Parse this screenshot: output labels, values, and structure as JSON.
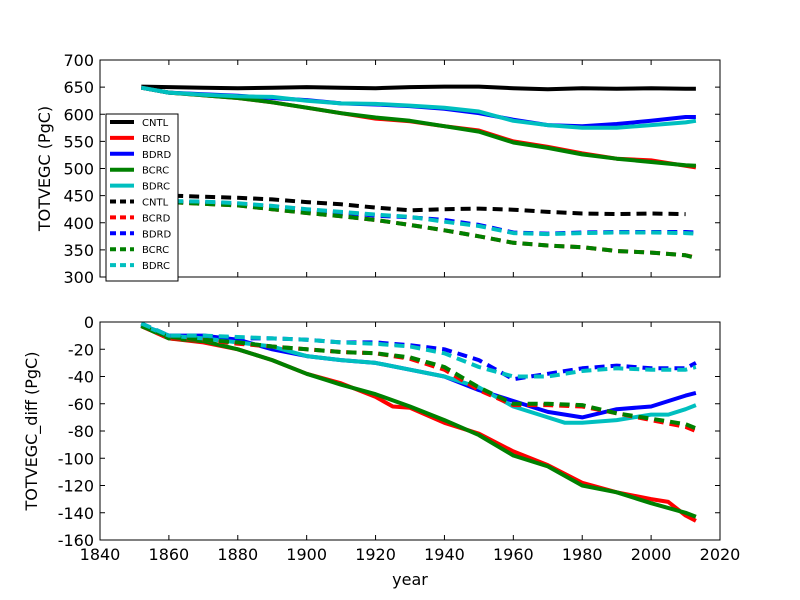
{
  "chart_data": [
    {
      "type": "line",
      "ylabel": "TOTVEGC (PgC)",
      "xlabel": "",
      "xlim": [
        1840,
        2020
      ],
      "ylim": [
        300,
        700
      ],
      "xticks": [
        1840,
        1860,
        1880,
        1900,
        1920,
        1940,
        1960,
        1980,
        2000,
        2020
      ],
      "yticks": [
        300,
        350,
        400,
        450,
        500,
        550,
        600,
        650,
        700
      ],
      "show_xtick_labels": false,
      "legend_position": "left",
      "series": [
        {
          "name": "CNTL",
          "color": "#000000",
          "style": "solid",
          "x": [
            1852,
            1860,
            1870,
            1880,
            1890,
            1900,
            1910,
            1920,
            1930,
            1940,
            1950,
            1960,
            1970,
            1980,
            1990,
            2000,
            2010,
            2013
          ],
          "y": [
            651,
            650,
            649,
            648,
            649,
            650,
            649,
            648,
            650,
            651,
            651,
            648,
            646,
            648,
            647,
            648,
            647,
            647
          ]
        },
        {
          "name": "BCRD",
          "color": "#ff0000",
          "style": "solid",
          "x": [
            1852,
            1860,
            1870,
            1880,
            1890,
            1900,
            1910,
            1920,
            1930,
            1940,
            1950,
            1960,
            1970,
            1980,
            1990,
            2000,
            2010,
            2013
          ],
          "y": [
            649,
            640,
            635,
            630,
            622,
            612,
            602,
            592,
            587,
            578,
            570,
            550,
            540,
            528,
            518,
            515,
            505,
            502
          ]
        },
        {
          "name": "BDRD",
          "color": "#0000ff",
          "style": "solid",
          "x": [
            1852,
            1860,
            1870,
            1880,
            1890,
            1900,
            1910,
            1920,
            1930,
            1940,
            1950,
            1960,
            1970,
            1980,
            1990,
            2000,
            2010,
            2013
          ],
          "y": [
            649,
            640,
            637,
            634,
            630,
            626,
            620,
            618,
            615,
            610,
            602,
            590,
            580,
            578,
            582,
            588,
            595,
            595
          ]
        },
        {
          "name": "BCRC",
          "color": "#008000",
          "style": "solid",
          "x": [
            1852,
            1860,
            1870,
            1880,
            1890,
            1900,
            1910,
            1920,
            1930,
            1940,
            1950,
            1960,
            1970,
            1980,
            1990,
            2000,
            2010,
            2013
          ],
          "y": [
            649,
            640,
            635,
            630,
            622,
            612,
            602,
            594,
            588,
            578,
            568,
            548,
            538,
            526,
            518,
            512,
            506,
            505
          ]
        },
        {
          "name": "BDRC",
          "color": "#00bfbf",
          "style": "solid",
          "x": [
            1852,
            1860,
            1870,
            1880,
            1890,
            1900,
            1910,
            1920,
            1930,
            1940,
            1950,
            1960,
            1970,
            1980,
            1990,
            2000,
            2010,
            2013
          ],
          "y": [
            649,
            640,
            636,
            633,
            632,
            625,
            620,
            619,
            616,
            612,
            605,
            588,
            580,
            575,
            575,
            580,
            585,
            588
          ]
        },
        {
          "name": "CNTL",
          "color": "#000000",
          "style": "dashed",
          "x": [
            1852,
            1860,
            1870,
            1880,
            1890,
            1900,
            1910,
            1920,
            1930,
            1940,
            1950,
            1960,
            1970,
            1980,
            1990,
            2000,
            2010
          ],
          "y": [
            455,
            450,
            448,
            446,
            443,
            438,
            434,
            428,
            423,
            425,
            426,
            424,
            420,
            417,
            416,
            417,
            416
          ]
        },
        {
          "name": "BCRD",
          "color": "#ff0000",
          "style": "dashed",
          "x": [
            1852,
            1860,
            1870,
            1880,
            1890,
            1900,
            1910,
            1920,
            1930,
            1940,
            1950,
            1960,
            1970,
            1980,
            1990,
            2000,
            2010,
            2013
          ],
          "y": [
            442,
            438,
            435,
            432,
            425,
            418,
            412,
            405,
            396,
            386,
            375,
            363,
            358,
            355,
            348,
            345,
            340,
            336
          ]
        },
        {
          "name": "BDRD",
          "color": "#0000ff",
          "style": "dashed",
          "x": [
            1852,
            1860,
            1870,
            1880,
            1890,
            1900,
            1910,
            1920,
            1930,
            1940,
            1950,
            1960,
            1970,
            1980,
            1990,
            2000,
            2010,
            2013
          ],
          "y": [
            442,
            438,
            438,
            435,
            430,
            424,
            419,
            413,
            410,
            405,
            396,
            382,
            380,
            382,
            383,
            383,
            383,
            382
          ]
        },
        {
          "name": "BCRC",
          "color": "#008000",
          "style": "dashed",
          "x": [
            1852,
            1860,
            1870,
            1880,
            1890,
            1900,
            1910,
            1920,
            1930,
            1940,
            1950,
            1960,
            1970,
            1980,
            1990,
            2000,
            2010,
            2013
          ],
          "y": [
            442,
            438,
            435,
            432,
            425,
            418,
            412,
            405,
            396,
            386,
            375,
            363,
            358,
            355,
            348,
            345,
            340,
            335
          ]
        },
        {
          "name": "BDRC",
          "color": "#00bfbf",
          "style": "dashed",
          "x": [
            1852,
            1860,
            1870,
            1880,
            1890,
            1900,
            1910,
            1920,
            1930,
            1940,
            1950,
            1960,
            1970,
            1980,
            1990,
            2000,
            2010,
            2013
          ],
          "y": [
            442,
            440,
            439,
            436,
            431,
            425,
            420,
            415,
            411,
            402,
            394,
            381,
            379,
            381,
            382,
            382,
            381,
            380
          ]
        }
      ]
    },
    {
      "type": "line",
      "ylabel": "TOTVEGC_diff (PgC)",
      "xlabel": "year",
      "xlim": [
        1840,
        2020
      ],
      "ylim": [
        -160,
        0
      ],
      "xticks": [
        1840,
        1860,
        1880,
        1900,
        1920,
        1940,
        1960,
        1980,
        2000,
        2020
      ],
      "yticks": [
        -160,
        -140,
        -120,
        -100,
        -80,
        -60,
        -40,
        -20,
        0
      ],
      "show_xtick_labels": true,
      "series": [
        {
          "name": "BCRD",
          "color": "#ff0000",
          "style": "solid",
          "x": [
            1852,
            1860,
            1870,
            1880,
            1890,
            1900,
            1910,
            1920,
            1925,
            1930,
            1940,
            1950,
            1960,
            1970,
            1980,
            1990,
            2000,
            2005,
            2010,
            2013
          ],
          "y": [
            -3,
            -12,
            -15,
            -20,
            -28,
            -38,
            -45,
            -55,
            -62,
            -63,
            -74,
            -82,
            -95,
            -105,
            -118,
            -125,
            -130,
            -132,
            -142,
            -146
          ]
        },
        {
          "name": "BDRD",
          "color": "#0000ff",
          "style": "solid",
          "x": [
            1852,
            1860,
            1870,
            1880,
            1890,
            1900,
            1910,
            1920,
            1930,
            1940,
            1950,
            1960,
            1970,
            1975,
            1980,
            1990,
            2000,
            2010,
            2013
          ],
          "y": [
            -2,
            -10,
            -10,
            -13,
            -20,
            -25,
            -28,
            -30,
            -35,
            -40,
            -50,
            -58,
            -66,
            -68,
            -70,
            -64,
            -62,
            -54,
            -52
          ]
        },
        {
          "name": "BCRC",
          "color": "#008000",
          "style": "solid",
          "x": [
            1852,
            1860,
            1870,
            1880,
            1890,
            1900,
            1910,
            1920,
            1930,
            1940,
            1950,
            1960,
            1970,
            1980,
            1990,
            2000,
            2010,
            2013
          ],
          "y": [
            -3,
            -12,
            -14,
            -20,
            -28,
            -38,
            -46,
            -53,
            -62,
            -72,
            -83,
            -98,
            -106,
            -120,
            -125,
            -133,
            -140,
            -143
          ]
        },
        {
          "name": "BDRC",
          "color": "#00bfbf",
          "style": "solid",
          "x": [
            1852,
            1860,
            1870,
            1880,
            1890,
            1900,
            1910,
            1920,
            1930,
            1940,
            1950,
            1960,
            1970,
            1975,
            1980,
            1990,
            2000,
            2005,
            2010,
            2013
          ],
          "y": [
            -2,
            -10,
            -12,
            -15,
            -18,
            -25,
            -28,
            -30,
            -35,
            -40,
            -48,
            -62,
            -70,
            -74,
            -74,
            -72,
            -68,
            -68,
            -64,
            -61
          ]
        },
        {
          "name": "BCRD",
          "color": "#ff0000",
          "style": "dashed",
          "x": [
            1852,
            1860,
            1870,
            1880,
            1890,
            1900,
            1910,
            1920,
            1930,
            1940,
            1950,
            1960,
            1970,
            1980,
            1990,
            2000,
            2010,
            2013
          ],
          "y": [
            -3,
            -12,
            -13,
            -16,
            -18,
            -20,
            -22,
            -23,
            -27,
            -35,
            -50,
            -61,
            -61,
            -62,
            -67,
            -72,
            -77,
            -80
          ]
        },
        {
          "name": "BDRD",
          "color": "#0000ff",
          "style": "dashed",
          "x": [
            1852,
            1860,
            1870,
            1880,
            1890,
            1900,
            1910,
            1920,
            1930,
            1940,
            1950,
            1960,
            1970,
            1980,
            1990,
            2000,
            2010,
            2013
          ],
          "y": [
            -1,
            -10,
            -10,
            -12,
            -12,
            -13,
            -15,
            -15,
            -17,
            -20,
            -28,
            -42,
            -38,
            -34,
            -32,
            -34,
            -34,
            -30
          ]
        },
        {
          "name": "BCRC",
          "color": "#008000",
          "style": "dashed",
          "x": [
            1852,
            1860,
            1870,
            1880,
            1890,
            1900,
            1910,
            1920,
            1930,
            1940,
            1950,
            1960,
            1970,
            1980,
            1990,
            2000,
            2010,
            2013
          ],
          "y": [
            -3,
            -11,
            -13,
            -15,
            -18,
            -20,
            -22,
            -23,
            -26,
            -33,
            -48,
            -60,
            -60,
            -61,
            -67,
            -71,
            -75,
            -78
          ]
        },
        {
          "name": "BDRC",
          "color": "#00bfbf",
          "style": "dashed",
          "x": [
            1852,
            1860,
            1870,
            1880,
            1890,
            1900,
            1910,
            1920,
            1930,
            1940,
            1950,
            1960,
            1970,
            1980,
            1990,
            2000,
            2010,
            2013
          ],
          "y": [
            -1,
            -10,
            -10,
            -11,
            -12,
            -13,
            -15,
            -16,
            -18,
            -23,
            -33,
            -40,
            -40,
            -36,
            -34,
            -35,
            -35,
            -33
          ]
        }
      ]
    }
  ]
}
